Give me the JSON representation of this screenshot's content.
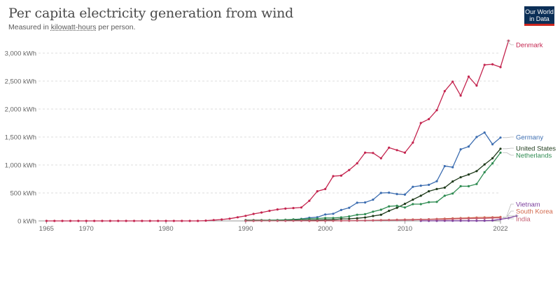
{
  "title": "Per capita electricity generation from wind",
  "subtitle": {
    "prefix": "Measured in ",
    "unit": "kilowatt-hours",
    "suffix": " per person."
  },
  "logo": {
    "line1": "Our World",
    "line2": "in Data"
  },
  "chart_data": {
    "type": "line",
    "title": "Per capita electricity generation from wind",
    "xlim": [
      1965,
      2023
    ],
    "ylim": [
      0,
      3200
    ],
    "x_ticks": [
      1965,
      1970,
      1980,
      1990,
      2000,
      2010,
      2022
    ],
    "y_ticks": [
      {
        "value": 0,
        "label": "0 kWh"
      },
      {
        "value": 500,
        "label": "500 kWh"
      },
      {
        "value": 1000,
        "label": "1,000 kWh"
      },
      {
        "value": 1500,
        "label": "1,500 kWh"
      },
      {
        "value": 2000,
        "label": "2,000 kWh"
      },
      {
        "value": 2500,
        "label": "2,500 kWh"
      },
      {
        "value": 3000,
        "label": "3,000 kWh"
      }
    ],
    "grid": "horizontal dotted",
    "legend": "right (line-end labels)",
    "series": [
      {
        "name": "Denmark",
        "color": "#c4254f",
        "start_year": 1965,
        "values": [
          0,
          0,
          0,
          0,
          0,
          0,
          0,
          0,
          0,
          0,
          0,
          0,
          0,
          0,
          0,
          0,
          0,
          0,
          0,
          0,
          5,
          15,
          25,
          40,
          65,
          90,
          125,
          150,
          180,
          205,
          220,
          230,
          240,
          360,
          530,
          570,
          800,
          810,
          910,
          1030,
          1220,
          1215,
          1120,
          1310,
          1265,
          1220,
          1400,
          1750,
          1820,
          1980,
          2320,
          2490,
          2240,
          2580,
          2420,
          2790,
          2800,
          2750,
          3220
        ]
      },
      {
        "name": "Germany",
        "color": "#3c6db0",
        "start_year": 1990,
        "values": [
          1,
          3,
          4,
          8,
          12,
          18,
          25,
          36,
          56,
          66,
          115,
          128,
          195,
          235,
          325,
          330,
          380,
          500,
          505,
          480,
          470,
          610,
          630,
          645,
          710,
          980,
          960,
          1280,
          1330,
          1500,
          1580,
          1370,
          1490
        ]
      },
      {
        "name": "United States",
        "color": "#1f3b1b",
        "start_year": 1990,
        "values": [
          12,
          12,
          12,
          13,
          12,
          13,
          12,
          13,
          14,
          16,
          20,
          23,
          36,
          38,
          48,
          61,
          88,
          110,
          180,
          235,
          305,
          380,
          450,
          530,
          570,
          595,
          705,
          780,
          830,
          890,
          1010,
          1120,
          1290
        ]
      },
      {
        "name": "Netherlands",
        "color": "#2f8c52",
        "start_year": 1990,
        "values": [
          4,
          6,
          8,
          12,
          15,
          20,
          26,
          31,
          40,
          42,
          52,
          52,
          63,
          80,
          110,
          120,
          165,
          200,
          260,
          270,
          240,
          300,
          300,
          335,
          340,
          450,
          490,
          620,
          620,
          660,
          870,
          1030,
          1220
        ]
      },
      {
        "name": "Vietnam",
        "color": "#7a3d9c",
        "start_year": 2012,
        "values": [
          1,
          1,
          1,
          2,
          2,
          2,
          3,
          3,
          4,
          8,
          30,
          50,
          90
        ]
      },
      {
        "name": "South Korea",
        "color": "#d2694d",
        "start_year": 1998,
        "values": [
          0,
          0,
          1,
          2,
          4,
          5,
          8,
          8,
          10,
          15,
          18,
          20,
          24,
          25,
          28,
          30,
          35,
          40,
          45,
          50,
          55,
          60,
          62,
          65,
          70
        ]
      },
      {
        "name": "India",
        "color": "#c45c70",
        "start_year": 1990,
        "values": [
          0,
          0,
          1,
          1,
          1,
          1,
          2,
          2,
          2,
          2,
          2,
          3,
          3,
          4,
          5,
          6,
          8,
          10,
          12,
          14,
          16,
          18,
          22,
          25,
          27,
          28,
          32,
          38,
          41,
          44,
          45,
          51,
          55
        ]
      }
    ]
  }
}
